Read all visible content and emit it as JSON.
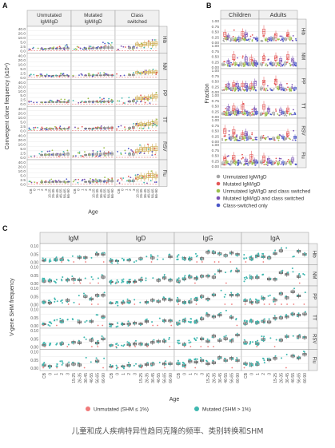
{
  "caption": "儿童和成人疾病特异性趋同克隆的频率、类别转换和SHM",
  "colors": {
    "unmut": "#a6a6a6",
    "mut": "#e35757",
    "ucs": "#9bbf4c",
    "mcs": "#7a52b3",
    "cs": "#4a56c7",
    "teal": "#3fb8b0",
    "salmon": "#f07a7a",
    "box_sw": "#c9a13b",
    "grid": "#e3e3e3",
    "strip": "#f0f0f0"
  },
  "chart_data": [
    {
      "panel": "A",
      "type": "boxplot-scatter",
      "ylabel": "Convergent clone frequency (x10⁴)",
      "xlabel": "Age",
      "columns": [
        "Unmutated IgM/IgD",
        "Mutated IgM/IgD",
        "Class switched"
      ],
      "rows": [
        "Hib",
        "NM",
        "PP",
        "TT",
        "RSV",
        "Flu"
      ],
      "yticks": [
        "0.0",
        "2.5",
        "5.0",
        "10.0",
        "20.0",
        "40.0"
      ],
      "age_ticks": [
        "CB",
        "0",
        "1",
        "2",
        "3",
        "15-25",
        "26-35",
        "36-45",
        "46-55",
        "56-65",
        "66-90"
      ],
      "levels": [
        {
          "row": "Hib",
          "col": "Unmutated IgM/IgD",
          "level": 0.2
        },
        {
          "row": "Hib",
          "col": "Mutated IgM/IgD",
          "level": 0.4
        },
        {
          "row": "Hib",
          "col": "Class switched",
          "level": 0.6
        },
        {
          "row": "NM",
          "col": "Unmutated IgM/IgD",
          "level": 0.1
        },
        {
          "row": "NM",
          "col": "Mutated IgM/IgD",
          "level": 0.2
        },
        {
          "row": "NM",
          "col": "Class switched",
          "level": 0.4
        },
        {
          "row": "PP",
          "col": "Unmutated IgM/IgD",
          "level": 0.15
        },
        {
          "row": "PP",
          "col": "Mutated IgM/IgD",
          "level": 0.3
        },
        {
          "row": "PP",
          "col": "Class switched",
          "level": 0.6
        },
        {
          "row": "TT",
          "col": "Unmutated IgM/IgD",
          "level": 0.15
        },
        {
          "row": "TT",
          "col": "Mutated IgM/IgD",
          "level": 0.3
        },
        {
          "row": "TT",
          "col": "Class switched",
          "level": 0.6
        },
        {
          "row": "RSV",
          "col": "Unmutated IgM/IgD",
          "level": 0.4
        },
        {
          "row": "RSV",
          "col": "Mutated IgM/IgD",
          "level": 0.5
        },
        {
          "row": "RSV",
          "col": "Class switched",
          "level": 0.8
        },
        {
          "row": "Flu",
          "col": "Unmutated IgM/IgD",
          "level": 0.2
        },
        {
          "row": "Flu",
          "col": "Mutated IgM/IgD",
          "level": 0.4
        },
        {
          "row": "Flu",
          "col": "Class switched",
          "level": 0.7
        }
      ]
    },
    {
      "panel": "B",
      "type": "boxplot-scatter",
      "ylabel": "Fraction",
      "columns": [
        "Children",
        "Adults"
      ],
      "rows": [
        "Hib",
        "NM",
        "PP",
        "TT",
        "RSV",
        "Flu"
      ],
      "yticks": [
        "0.00",
        "0.25",
        "0.50",
        "0.75",
        "1.00"
      ],
      "legend": [
        {
          "label": "Unmutated IgM/IgD",
          "color": "#a6a6a6"
        },
        {
          "label": "Mutated IgM/IgD",
          "color": "#e35757"
        },
        {
          "label": "Unmutated IgM/IgD and class switched",
          "color": "#9bbf4c"
        },
        {
          "label": "Mutated IgM/IgD and class switched",
          "color": "#7a52b3"
        },
        {
          "label": "Class-switched only",
          "color": "#4a56c7"
        }
      ]
    },
    {
      "panel": "C",
      "type": "boxplot-scatter",
      "ylabel": "V-gene SHM frequency",
      "xlabel": "Age",
      "columns": [
        "IgM",
        "IgD",
        "IgG",
        "IgA"
      ],
      "rows": [
        "Hib",
        "NM",
        "PP",
        "TT",
        "RSV",
        "Flu"
      ],
      "yticks": [
        "0.00",
        "0.05",
        "0.10"
      ],
      "age_ticks": [
        "CB",
        "0",
        "1",
        "2",
        "3",
        "15-25",
        "26-35",
        "36-45",
        "46-55",
        "56-65",
        "66-90"
      ],
      "legend": [
        {
          "label": "Unmutated (SHM ≤ 1%)",
          "color": "#f07a7a"
        },
        {
          "label": "Mutated (SHM > 1%)",
          "color": "#3fb8b0"
        }
      ],
      "trend": {
        "IgM": [
          0.02,
          0.02,
          0.025,
          0.03,
          0.03,
          0.04,
          0.045,
          0.05,
          0.05,
          0.055,
          0.06
        ],
        "IgD": [
          0.01,
          0.01,
          0.015,
          0.02,
          0.02,
          0.025,
          0.03,
          0.03,
          0.035,
          0.04,
          0.04
        ],
        "IgG": [
          0.03,
          0.035,
          0.04,
          0.045,
          0.05,
          0.06,
          0.065,
          0.07,
          0.075,
          0.08,
          0.085
        ],
        "IgA": [
          0.03,
          0.035,
          0.04,
          0.05,
          0.05,
          0.06,
          0.065,
          0.07,
          0.075,
          0.08,
          0.085
        ]
      }
    }
  ]
}
